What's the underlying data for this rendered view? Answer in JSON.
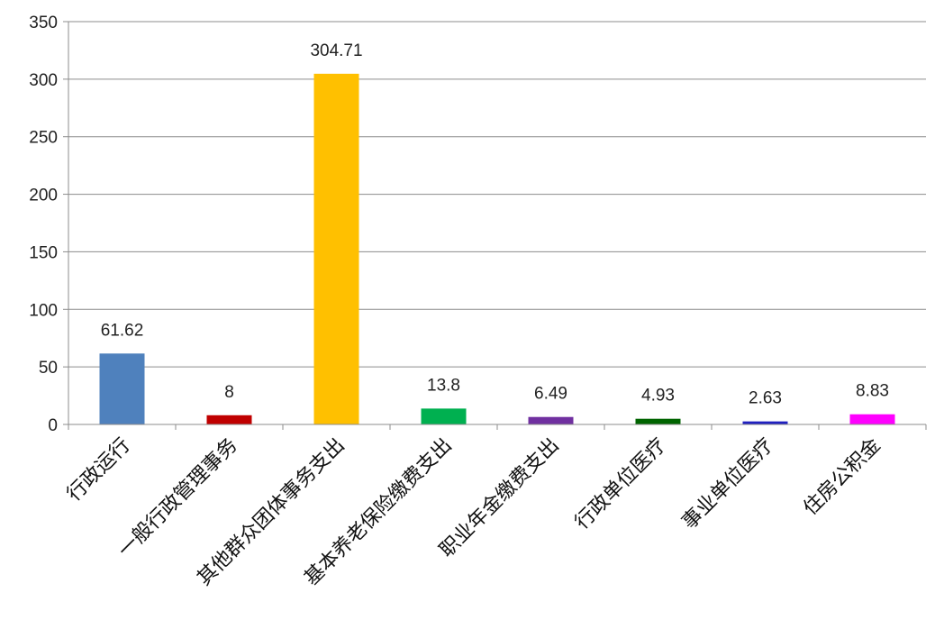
{
  "chart_data": {
    "type": "bar",
    "categories": [
      "行政运行",
      "一般行政管理事务",
      "其他群众团体事务支出",
      "基本养老保险缴费支出",
      "职业年金缴费支出",
      "行政单位医疗",
      "事业单位医疗",
      "住房公积金"
    ],
    "values": [
      61.62,
      8,
      304.71,
      13.8,
      6.49,
      4.93,
      2.63,
      8.83
    ],
    "data_labels": [
      "61.62",
      "8",
      "304.71",
      "13.8",
      "6.49",
      "4.93",
      "2.63",
      "8.83"
    ],
    "colors": [
      "#4f81bd",
      "#c00000",
      "#ffc000",
      "#00b050",
      "#7030a0",
      "#006400",
      "#2020c0",
      "#ff00ff"
    ],
    "ylim": [
      0,
      350
    ],
    "yticks": [
      0,
      50,
      100,
      150,
      200,
      250,
      300,
      350
    ],
    "grid": true,
    "legend": "none"
  }
}
